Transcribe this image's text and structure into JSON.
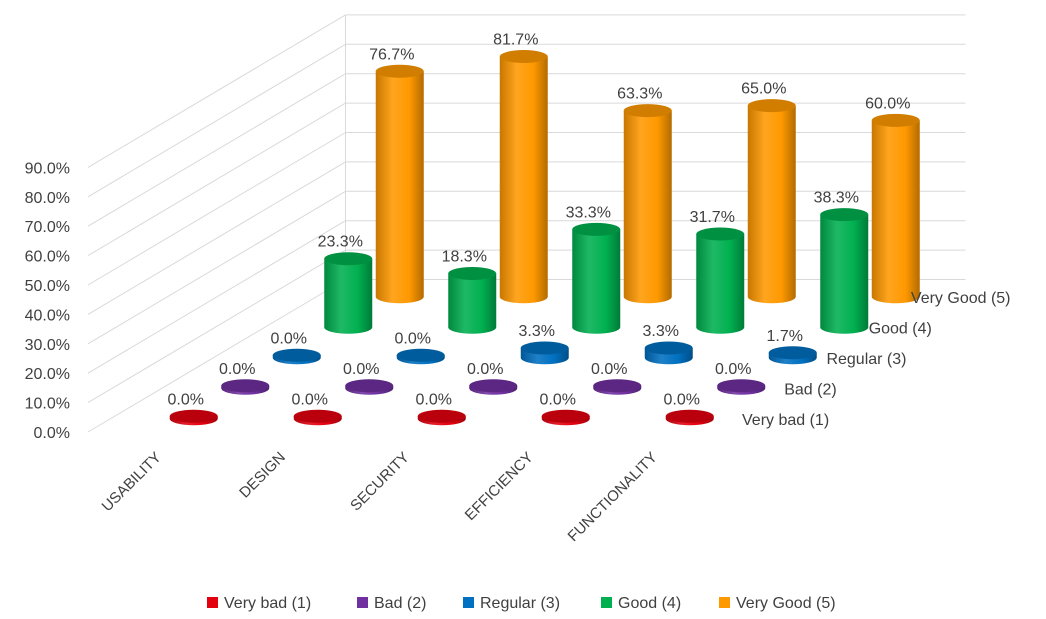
{
  "chart_data": {
    "type": "bar",
    "style": "3d-cylinder",
    "categories": [
      "USABILITY",
      "DESIGN",
      "SECURITY",
      "EFFICIENCY",
      "FUNCTIONALITY"
    ],
    "series": [
      {
        "name": "Very bad (1)",
        "color": "#e3000f",
        "values": [
          0.0,
          0.0,
          0.0,
          0.0,
          0.0
        ],
        "labels": [
          "0.0%",
          "0.0%",
          "0.0%",
          "0.0%",
          "0.0%"
        ]
      },
      {
        "name": "Bad (2)",
        "color": "#7030a0",
        "values": [
          0.0,
          0.0,
          0.0,
          0.0,
          0.0
        ],
        "labels": [
          "0.0%",
          "0.0%",
          "0.0%",
          "0.0%",
          "0.0%"
        ]
      },
      {
        "name": "Regular (3)",
        "color": "#0070c0",
        "values": [
          0.0,
          0.0,
          3.3,
          3.3,
          1.7
        ],
        "labels": [
          "0.0%",
          "0.0%",
          "3.3%",
          "3.3%",
          "1.7%"
        ]
      },
      {
        "name": "Good (4)",
        "color": "#00b050",
        "values": [
          23.3,
          18.3,
          33.3,
          31.7,
          38.3
        ],
        "labels": [
          "23.3%",
          "18.3%",
          "33.3%",
          "31.7%",
          "38.3%"
        ]
      },
      {
        "name": "Very Good (5)",
        "color": "#ff9900",
        "values": [
          76.7,
          81.7,
          63.3,
          65.0,
          60.0
        ],
        "labels": [
          "76.7%",
          "81.7%",
          "63.3%",
          "65.0%",
          "60.0%"
        ]
      }
    ],
    "depth_labels": [
      "Very bad (1)",
      "Bad (2)",
      "Regular (3)",
      "Good (4)",
      "Very Good (5)"
    ],
    "y_ticks": [
      "0.0%",
      "10.0%",
      "20.0%",
      "30.0%",
      "40.0%",
      "50.0%",
      "60.0%",
      "70.0%",
      "80.0%",
      "90.0%"
    ],
    "ylim": [
      0,
      90
    ],
    "unit": "%",
    "grid": true,
    "legend_position": "bottom",
    "title": "",
    "xlabel": "",
    "ylabel": ""
  }
}
